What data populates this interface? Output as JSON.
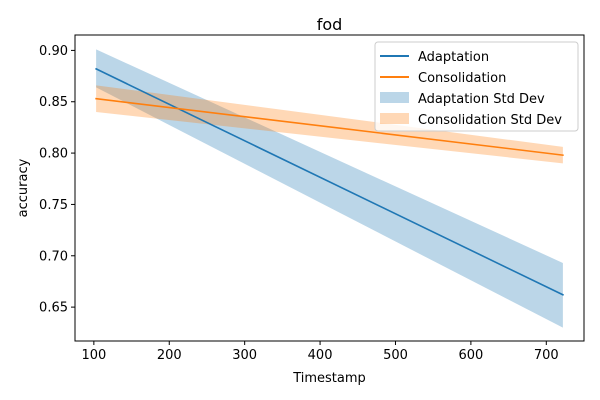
{
  "chart_data": {
    "type": "line",
    "title": "fod",
    "xlabel": "Timestamp",
    "ylabel": "accuracy",
    "xlim": [
      75,
      750
    ],
    "ylim": [
      0.617,
      0.915
    ],
    "xticks": [
      100,
      200,
      300,
      400,
      500,
      600,
      700
    ],
    "yticks": [
      0.65,
      0.7,
      0.75,
      0.8,
      0.85,
      0.9
    ],
    "xtick_labels": [
      "100",
      "200",
      "300",
      "400",
      "500",
      "600",
      "700"
    ],
    "ytick_labels": [
      "0.65",
      "0.70",
      "0.75",
      "0.80",
      "0.85",
      "0.90"
    ],
    "grid": false,
    "legend_position": "top-right",
    "series": [
      {
        "name": "Adaptation",
        "color": "#1f77b4",
        "x": [
          103,
          722
        ],
        "y": [
          0.882,
          0.662
        ]
      },
      {
        "name": "Consolidation",
        "color": "#ff7f0e",
        "x": [
          103,
          722
        ],
        "y": [
          0.853,
          0.798
        ]
      }
    ],
    "bands": [
      {
        "name": "Adaptation Std Dev",
        "color": "#1f77b4",
        "opacity": 0.3,
        "x": [
          103,
          722
        ],
        "lower": [
          0.864,
          0.63
        ],
        "upper": [
          0.901,
          0.693
        ]
      },
      {
        "name": "Consolidation Std Dev",
        "color": "#ff7f0e",
        "opacity": 0.3,
        "x": [
          103,
          722
        ],
        "lower": [
          0.84,
          0.79
        ],
        "upper": [
          0.866,
          0.806
        ]
      }
    ]
  }
}
